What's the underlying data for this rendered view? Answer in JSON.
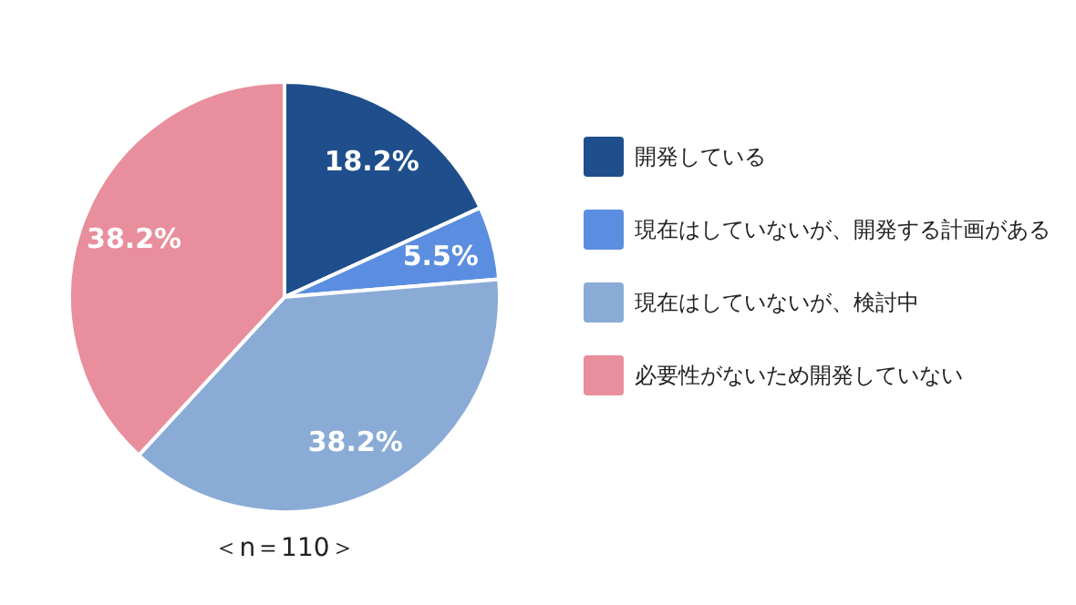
{
  "chart_data": {
    "type": "pie",
    "categories": [
      "開発している",
      "現在はしていないが、開発する計画がある",
      "現在はしていないが、検討中",
      "必要性がないため開発していない"
    ],
    "values": [
      18.2,
      5.5,
      38.2,
      38.2
    ],
    "colors": [
      "#1f4e8c",
      "#5b8ee0",
      "#8aabd6",
      "#e98e9c"
    ],
    "value_labels": [
      "18.2%",
      "5.5%",
      "38.2%",
      "38.2%"
    ],
    "legend": "right",
    "annotations": [
      "＜n＝110＞"
    ]
  }
}
